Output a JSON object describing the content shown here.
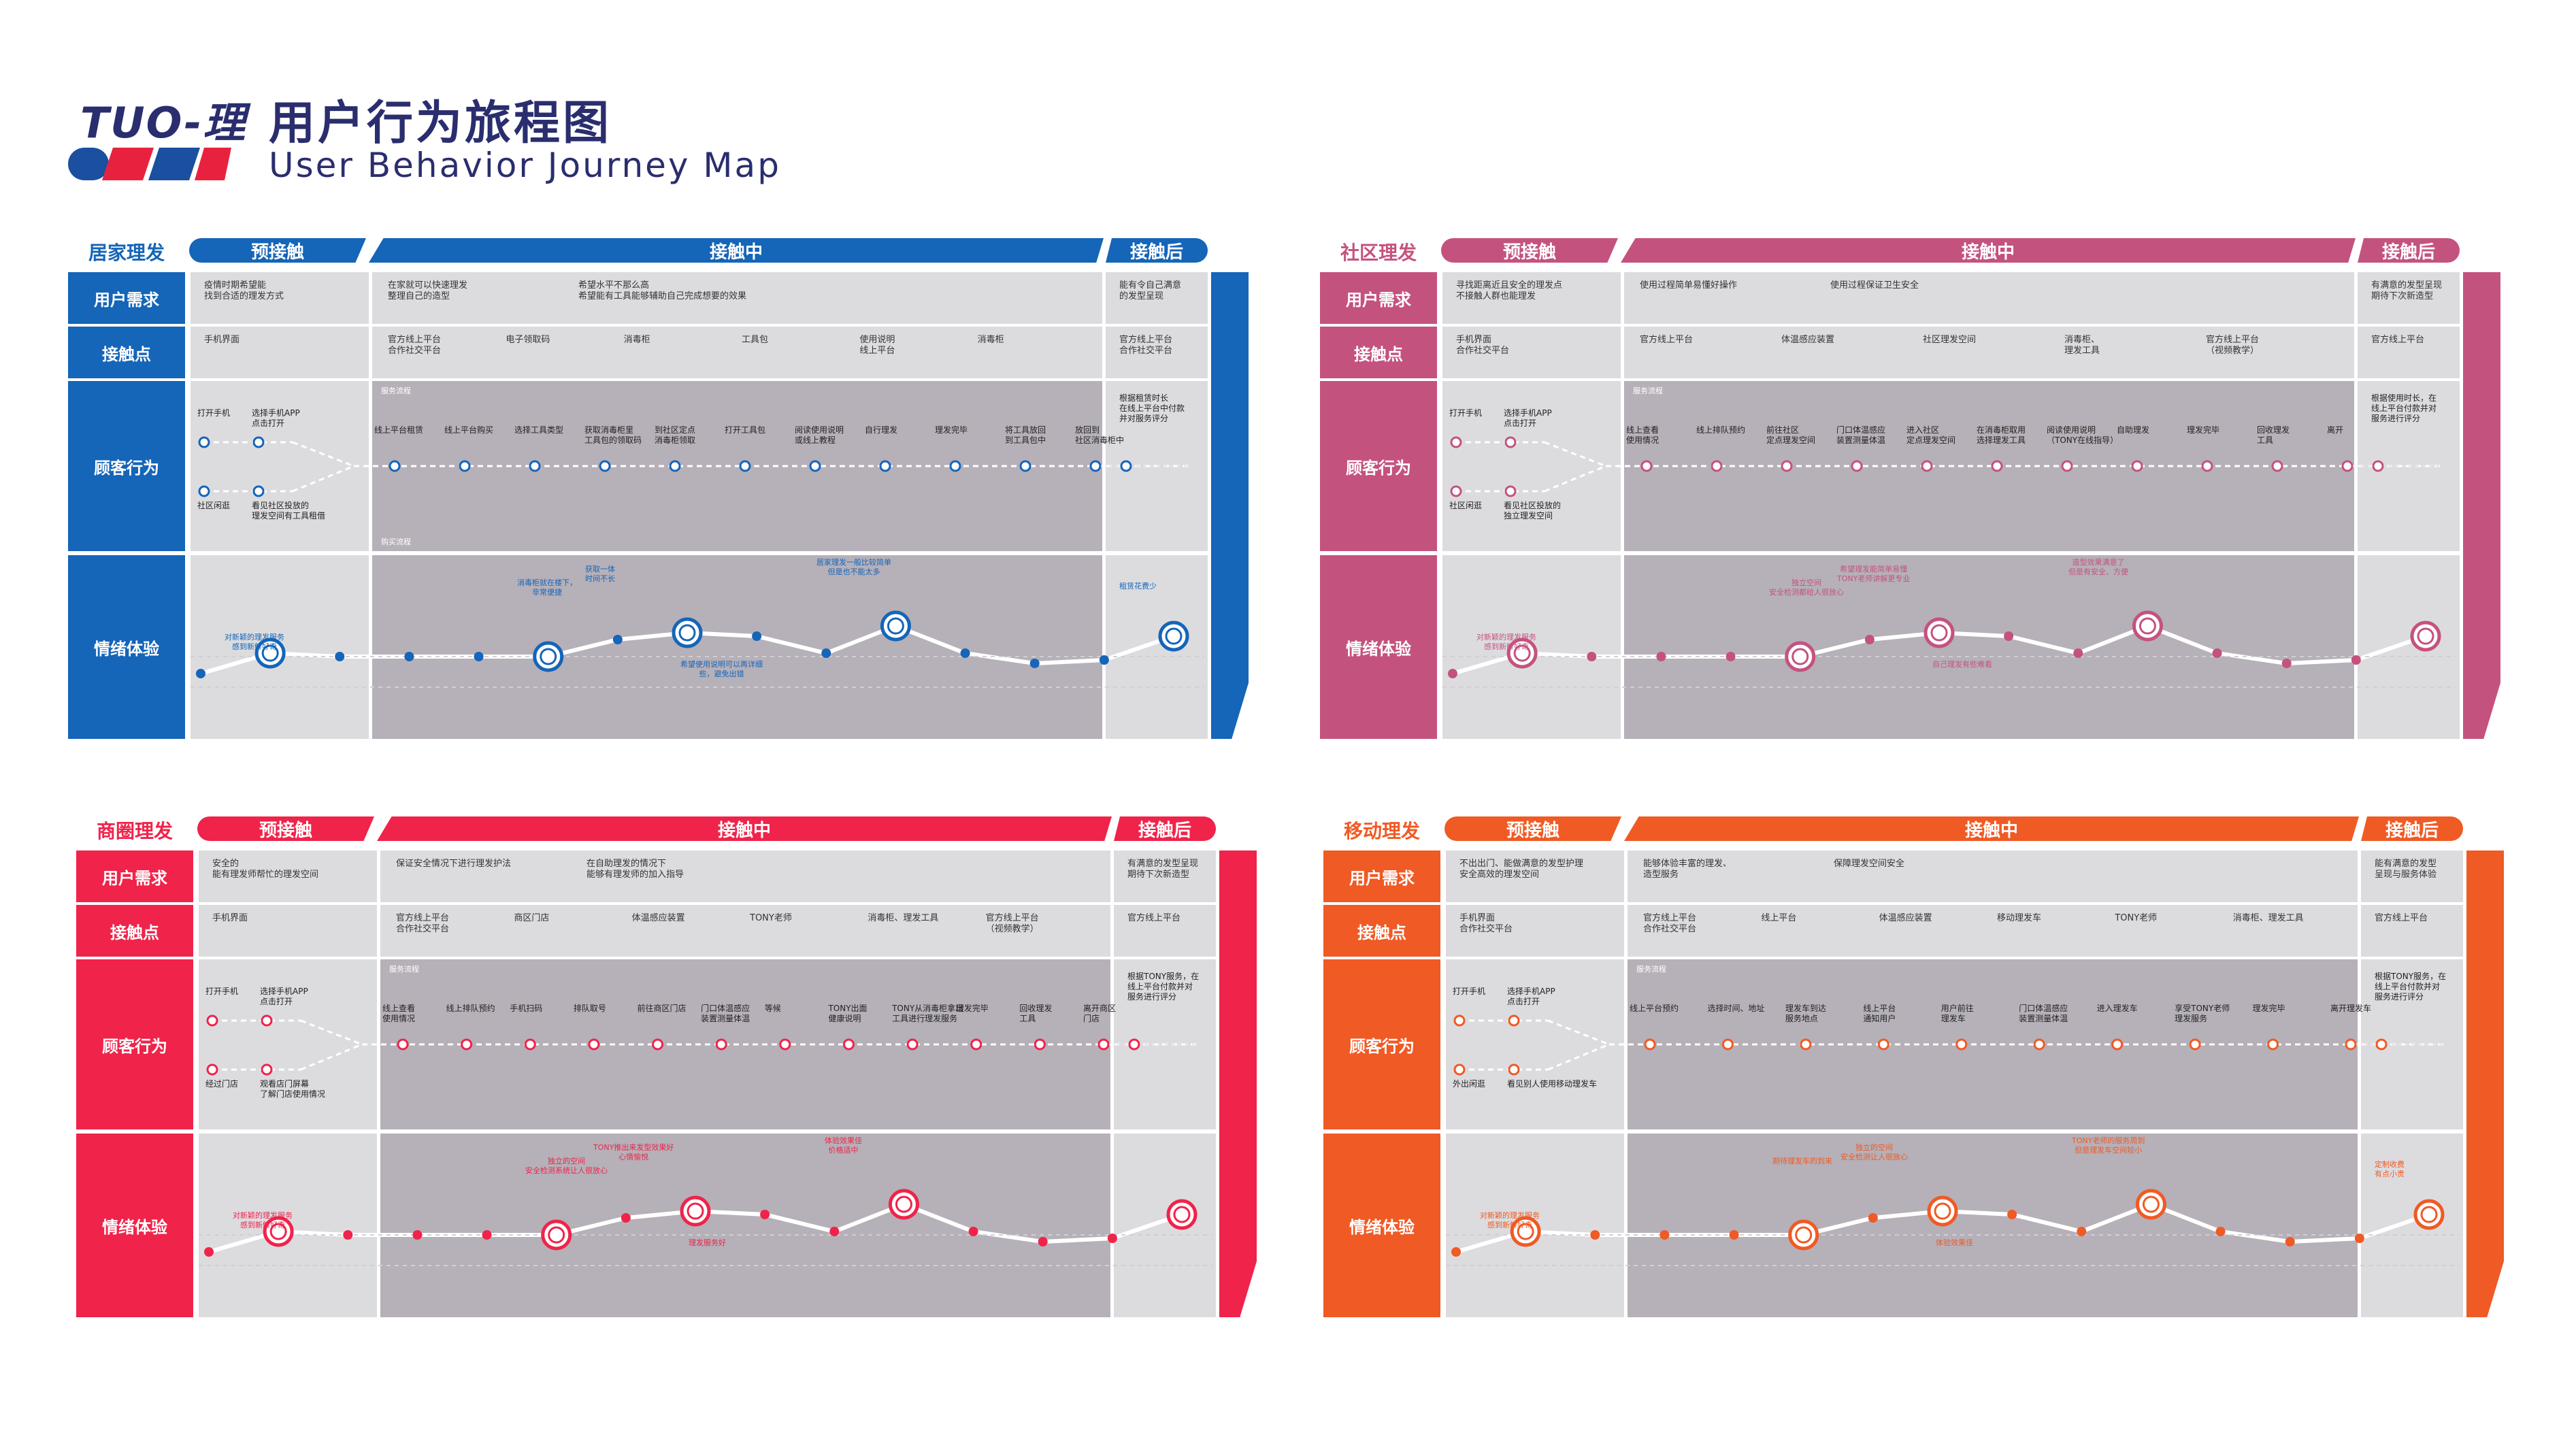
{
  "header": {
    "logo_mark": "TUO-理",
    "title": "用户行为旅程图",
    "subtitle": "User Behavior Journey Map",
    "stripe_colors": [
      "#e8223e",
      "#1b4fa0",
      "#e8223e"
    ]
  },
  "stage_labels": {
    "pre": "预接触",
    "mid": "接触中",
    "post": "接触后"
  },
  "row_labels": {
    "need": "用户需求",
    "touch": "接触点",
    "action": "顾客行为",
    "emotion": "情绪体验"
  },
  "panels": [
    {
      "title": "居家理发",
      "color": "#1565b8",
      "line_color": "#1565b8",
      "needs": [
        "疫情时期希望能\n找到合适的理发方式",
        "在家就可以快速理发\n整理自己的造型",
        "希望水平不那么高\n希望能有工具能够辅助自己完成想要的效果",
        "能有令自己满意\n的发型呈现"
      ],
      "touch": [
        "手机界面",
        "官方线上平台\n合作社交平台",
        "电子领取码",
        "消毒柜",
        "工具包",
        "使用说明\n线上平台",
        "消毒柜",
        "官方线上平台\n合作社交平台"
      ],
      "flow_tag_top": "服务流程",
      "flow_tag_bottom": "购买流程",
      "actions": [
        "打开手机",
        "选择手机APP\n点击打开",
        "社区闲逛",
        "看见社区投放的\n理发空间有工具租借",
        "线上平台租赁",
        "线上平台购买",
        "选择工具类型",
        "获取消毒柜里\n工具包的领取码",
        "到社区定点\n消毒柜领取",
        "打开工具包",
        "阅读使用说明\n或线上教程",
        "自行理发",
        "理发完毕",
        "将工具放回\n到工具包中",
        "放回到\n社区消毒柜中",
        "根据租赁时长\n在线上平台中付款\n并对服务评分"
      ],
      "emotions": [
        "对新颖的理发服务\n感到新鲜好奇",
        "消毒柜就在楼下，\n非常便捷",
        "获取一体\n时间不长",
        "希望使用说明可以再详细\n些，避免出错",
        "居家理发一般比较简单\n但是也不能太多",
        "租赁花费少"
      ]
    },
    {
      "title": "社区理发",
      "color": "#c4527f",
      "line_color": "#c4527f",
      "needs": [
        "寻找距离近且安全的理发点\n不接触人群也能理发",
        "使用过程简单易懂好操作",
        "使用过程保证卫生安全",
        "有满意的发型呈现\n期待下次新造型"
      ],
      "touch": [
        "手机界面\n合作社交平台",
        "官方线上平台",
        "体温感应装置",
        "社区理发空间",
        "消毒柜、\n理发工具",
        "官方线上平台\n（视频教学）",
        "官方线上平台"
      ],
      "flow_tag_top": "服务流程",
      "flow_tag_bottom": "",
      "actions": [
        "打开手机",
        "选择手机APP\n点击打开",
        "社区闲逛",
        "看见社区投放的\n独立理发空间",
        "线上查看\n使用情况",
        "线上排队预约",
        "前往社区\n定点理发空间",
        "门口体温感应\n装置测量体温",
        "进入社区\n定点理发空间",
        "在消毒柜取用\n选择理发工具",
        "阅读使用说明\n（TONY在线指导）",
        "自助理发",
        "理发完毕",
        "回收理发\n工具",
        "离开",
        "根据使用时长，在\n线上平台付款并对\n服务进行评分"
      ],
      "emotions": [
        "对新颖的理发服务\n感到新鲜好奇",
        "独立空间\n安全检测都给人很放心",
        "希望理发能简单易懂\nTONY老师讲解更专业",
        "自己理发有些难看",
        "造型效果满意了\n但是有安全、方便"
      ]
    },
    {
      "title": "商圈理发",
      "color": "#f0234a",
      "line_color": "#f0234a",
      "needs": [
        "安全的\n能有理发师帮忙的理发空间",
        "保证安全情况下进行理发护法",
        "在自助理发的情况下\n能够有理发师的加入指导",
        "有满意的发型呈现\n期待下次新造型"
      ],
      "touch": [
        "手机界面",
        "官方线上平台\n合作社交平台",
        "商区门店",
        "体温感应装置",
        "TONY老师",
        "消毒柜、理发工具",
        "官方线上平台\n（视频教学）",
        "官方线上平台"
      ],
      "flow_tag_top": "服务流程",
      "flow_tag_bottom": "",
      "actions": [
        "打开手机",
        "选择手机APP\n点击打开",
        "经过门店",
        "观看店门屏幕\n了解门店使用情况",
        "线上查看\n使用情况",
        "线上排队预约",
        "手机扫码",
        "排队取号",
        "前往商区门店",
        "门口体温感应\n装置测量体温",
        "等候",
        "TONY出面\n健康说明",
        "TONY从消毒柜拿出\n工具进行理发服务",
        "理发完毕",
        "回收理发\n工具",
        "离开商区\n门店",
        "根据TONY服务，在\n线上平台付款并对\n服务进行评分"
      ],
      "emotions": [
        "对新颖的理发服务\n感到新鲜好奇",
        "独立的空间\n安全检测系统让人很放心",
        "TONY推出来发型效果好\n心情愉悦",
        "理发服务好",
        "体验效果佳\n价格适中"
      ]
    },
    {
      "title": "移动理发",
      "color": "#f05a24",
      "line_color": "#f05a24",
      "needs": [
        "不出出门、能做满意的发型护理\n安全高效的理发空间",
        "能够体验丰富的理发、\n造型服务",
        "保障理发空间安全",
        "能有满意的发型\n呈现与服务体验"
      ],
      "touch": [
        "手机界面\n合作社交平台",
        "官方线上平台\n合作社交平台",
        "线上平台",
        "体温感应装置",
        "移动理发车",
        "TONY老师",
        "消毒柜、理发工具",
        "官方线上平台"
      ],
      "flow_tag_top": "服务流程",
      "flow_tag_bottom": "",
      "actions": [
        "打开手机",
        "选择手机APP\n点击打开",
        "外出闲逛",
        "看见别人使用移动理发车",
        "线上平台预约",
        "选择时间、地址",
        "理发车到达\n服务地点",
        "线上平台\n通知用户",
        "用户前往\n理发车",
        "门口体温感应\n装置测量体温",
        "进入理发车",
        "享受TONY老师\n理发服务",
        "理发完毕",
        "离开理发车",
        "根据TONY服务，在\n线上平台付款并对\n服务进行评分"
      ],
      "emotions": [
        "对新颖的理发服务\n感到新鲜好奇",
        "期待理发车的到来",
        "独立的空间\n安全检测让人很放心",
        "体验效果佳",
        "TONY老师的服务周到\n但是理发车空间较小",
        "定制收费\n有点小贵"
      ]
    }
  ]
}
